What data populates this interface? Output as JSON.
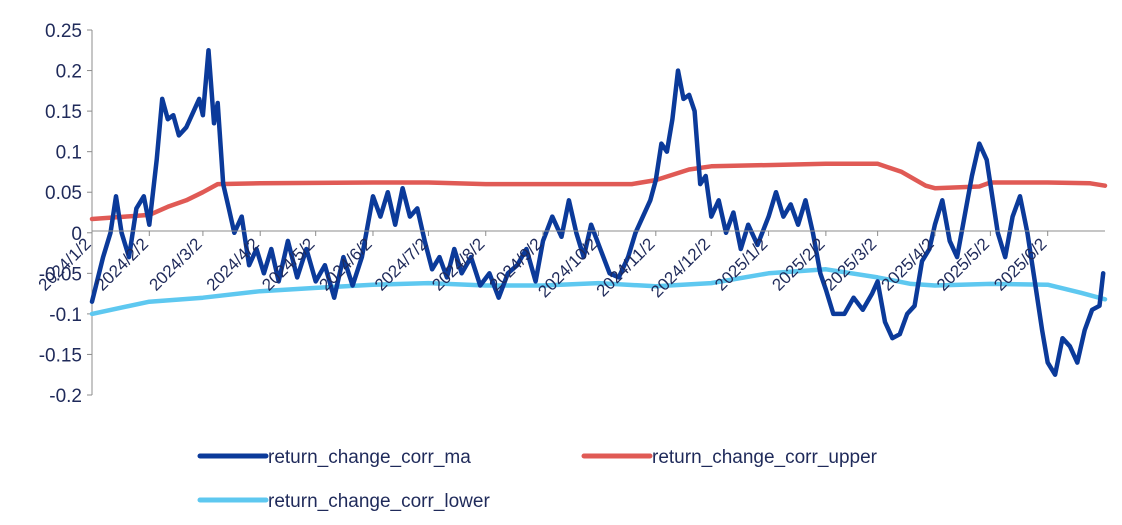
{
  "chart_data": {
    "type": "line",
    "title": "",
    "xlabel": "",
    "ylabel": "",
    "ylim": [
      -0.2,
      0.25
    ],
    "yticks": [
      0.25,
      0.2,
      0.15,
      0.1,
      0.05,
      0,
      -0.05,
      -0.1,
      -0.15,
      -0.2
    ],
    "ytick_labels": [
      "0.25",
      "0.2",
      "0.15",
      "0.1",
      "0.05",
      "0",
      "-0.05",
      "-0.1",
      "-0.15",
      "-0.2"
    ],
    "xtick_labels": [
      "2024/1/2",
      "2024/2/2",
      "2024/3/2",
      "2024/4/2",
      "2024/5/2",
      "2024/6/2",
      "2024/7/2",
      "2024/8/2",
      "2024/9/2",
      "2024/10/2",
      "2024/11/2",
      "2024/12/2",
      "2025/1/2",
      "2025/2/2",
      "2025/3/2",
      "2025/4/2",
      "2025/5/2",
      "2025/6/2"
    ],
    "x_range": [
      "2024/1/2",
      "2025/7/3"
    ],
    "grid": false,
    "legend_position": "bottom",
    "series": [
      {
        "name": "return_change_corr_ma",
        "color": "#0b3a9a",
        "points": [
          [
            "2024/1/2",
            -0.085
          ],
          [
            "2024/1/8",
            -0.03
          ],
          [
            "2024/1/12",
            0.0
          ],
          [
            "2024/1/15",
            0.045
          ],
          [
            "2024/1/18",
            0.0
          ],
          [
            "2024/1/22",
            -0.03
          ],
          [
            "2024/1/26",
            0.03
          ],
          [
            "2024/1/30",
            0.045
          ],
          [
            "2024/2/2",
            0.01
          ],
          [
            "2024/2/6",
            0.09
          ],
          [
            "2024/2/9",
            0.165
          ],
          [
            "2024/2/12",
            0.14
          ],
          [
            "2024/2/15",
            0.145
          ],
          [
            "2024/2/18",
            0.12
          ],
          [
            "2024/2/22",
            0.13
          ],
          [
            "2024/2/26",
            0.15
          ],
          [
            "2024/2/29",
            0.165
          ],
          [
            "2024/3/2",
            0.145
          ],
          [
            "2024/3/5",
            0.225
          ],
          [
            "2024/3/8",
            0.135
          ],
          [
            "2024/3/10",
            0.16
          ],
          [
            "2024/3/13",
            0.06
          ],
          [
            "2024/3/16",
            0.03
          ],
          [
            "2024/3/19",
            0.0
          ],
          [
            "2024/3/23",
            0.02
          ],
          [
            "2024/3/27",
            -0.04
          ],
          [
            "2024/3/31",
            -0.02
          ],
          [
            "2024/4/4",
            -0.05
          ],
          [
            "2024/4/8",
            -0.02
          ],
          [
            "2024/4/12",
            -0.06
          ],
          [
            "2024/4/17",
            -0.01
          ],
          [
            "2024/4/22",
            -0.055
          ],
          [
            "2024/4/27",
            -0.02
          ],
          [
            "2024/5/2",
            -0.06
          ],
          [
            "2024/5/7",
            -0.04
          ],
          [
            "2024/5/12",
            -0.08
          ],
          [
            "2024/5/17",
            -0.03
          ],
          [
            "2024/5/22",
            -0.065
          ],
          [
            "2024/5/27",
            -0.03
          ],
          [
            "2024/6/2",
            0.045
          ],
          [
            "2024/6/6",
            0.02
          ],
          [
            "2024/6/10",
            0.05
          ],
          [
            "2024/6/14",
            0.01
          ],
          [
            "2024/6/18",
            0.055
          ],
          [
            "2024/6/22",
            0.02
          ],
          [
            "2024/6/26",
            0.03
          ],
          [
            "2024/6/30",
            -0.01
          ],
          [
            "2024/7/4",
            -0.045
          ],
          [
            "2024/7/8",
            -0.03
          ],
          [
            "2024/7/12",
            -0.055
          ],
          [
            "2024/7/16",
            -0.02
          ],
          [
            "2024/7/20",
            -0.05
          ],
          [
            "2024/7/25",
            -0.03
          ],
          [
            "2024/7/30",
            -0.065
          ],
          [
            "2024/8/4",
            -0.05
          ],
          [
            "2024/8/9",
            -0.08
          ],
          [
            "2024/8/14",
            -0.05
          ],
          [
            "2024/8/19",
            -0.04
          ],
          [
            "2024/8/24",
            -0.02
          ],
          [
            "2024/8/29",
            -0.06
          ],
          [
            "2024/9/2",
            -0.01
          ],
          [
            "2024/9/7",
            0.02
          ],
          [
            "2024/9/12",
            -0.005
          ],
          [
            "2024/9/16",
            0.04
          ],
          [
            "2024/9/20",
            0.0
          ],
          [
            "2024/9/24",
            -0.03
          ],
          [
            "2024/9/28",
            0.01
          ],
          [
            "2024/10/3",
            -0.02
          ],
          [
            "2024/10/8",
            -0.05
          ],
          [
            "2024/10/13",
            -0.055
          ],
          [
            "2024/10/18",
            -0.03
          ],
          [
            "2024/10/22",
            0.0
          ],
          [
            "2024/10/26",
            0.02
          ],
          [
            "2024/10/30",
            0.04
          ],
          [
            "2024/11/2",
            0.065
          ],
          [
            "2024/11/5",
            0.11
          ],
          [
            "2024/11/8",
            0.1
          ],
          [
            "2024/11/11",
            0.14
          ],
          [
            "2024/11/14",
            0.2
          ],
          [
            "2024/11/17",
            0.165
          ],
          [
            "2024/11/20",
            0.17
          ],
          [
            "2024/11/23",
            0.15
          ],
          [
            "2024/11/26",
            0.06
          ],
          [
            "2024/11/29",
            0.07
          ],
          [
            "2024/12/2",
            0.02
          ],
          [
            "2024/12/6",
            0.04
          ],
          [
            "2024/12/10",
            0.0
          ],
          [
            "2024/12/14",
            0.025
          ],
          [
            "2024/12/18",
            -0.02
          ],
          [
            "2024/12/22",
            0.01
          ],
          [
            "2024/12/27",
            -0.015
          ],
          [
            "2025/1/2",
            0.02
          ],
          [
            "2025/1/6",
            0.05
          ],
          [
            "2025/1/10",
            0.02
          ],
          [
            "2025/1/14",
            0.035
          ],
          [
            "2025/1/18",
            0.01
          ],
          [
            "2025/1/22",
            0.04
          ],
          [
            "2025/1/26",
            0.0
          ],
          [
            "2025/1/30",
            -0.05
          ],
          [
            "2025/2/2",
            -0.07
          ],
          [
            "2025/2/6",
            -0.1
          ],
          [
            "2025/2/12",
            -0.1
          ],
          [
            "2025/2/17",
            -0.08
          ],
          [
            "2025/2/22",
            -0.095
          ],
          [
            "2025/2/27",
            -0.075
          ],
          [
            "2025/3/2",
            -0.06
          ],
          [
            "2025/3/6",
            -0.11
          ],
          [
            "2025/3/10",
            -0.13
          ],
          [
            "2025/3/14",
            -0.125
          ],
          [
            "2025/3/18",
            -0.1
          ],
          [
            "2025/3/22",
            -0.09
          ],
          [
            "2025/3/26",
            -0.035
          ],
          [
            "2025/3/30",
            -0.02
          ],
          [
            "2025/4/2",
            0.01
          ],
          [
            "2025/4/6",
            0.04
          ],
          [
            "2025/4/10",
            -0.01
          ],
          [
            "2025/4/14",
            -0.03
          ],
          [
            "2025/4/18",
            0.02
          ],
          [
            "2025/4/22",
            0.07
          ],
          [
            "2025/4/26",
            0.11
          ],
          [
            "2025/4/30",
            0.09
          ],
          [
            "2025/5/2",
            0.06
          ],
          [
            "2025/5/6",
            0.0
          ],
          [
            "2025/5/10",
            -0.03
          ],
          [
            "2025/5/14",
            0.02
          ],
          [
            "2025/5/18",
            0.045
          ],
          [
            "2025/5/22",
            0.0
          ],
          [
            "2025/5/26",
            -0.06
          ],
          [
            "2025/5/30",
            -0.12
          ],
          [
            "2025/6/2",
            -0.16
          ],
          [
            "2025/6/6",
            -0.175
          ],
          [
            "2025/6/10",
            -0.13
          ],
          [
            "2025/6/14",
            -0.14
          ],
          [
            "2025/6/18",
            -0.16
          ],
          [
            "2025/6/22",
            -0.12
          ],
          [
            "2025/6/26",
            -0.095
          ],
          [
            "2025/6/30",
            -0.09
          ],
          [
            "2025/7/2",
            -0.05
          ]
        ]
      },
      {
        "name": "return_change_corr_upper",
        "color": "#e05a55",
        "points": [
          [
            "2024/1/2",
            0.017
          ],
          [
            "2024/1/20",
            0.02
          ],
          [
            "2024/2/2",
            0.022
          ],
          [
            "2024/2/12",
            0.032
          ],
          [
            "2024/2/22",
            0.04
          ],
          [
            "2024/3/2",
            0.05
          ],
          [
            "2024/3/10",
            0.06
          ],
          [
            "2024/4/2",
            0.061
          ],
          [
            "2024/6/2",
            0.062
          ],
          [
            "2024/7/2",
            0.062
          ],
          [
            "2024/8/2",
            0.06
          ],
          [
            "2024/10/20",
            0.06
          ],
          [
            "2024/11/2",
            0.065
          ],
          [
            "2024/11/20",
            0.078
          ],
          [
            "2024/12/2",
            0.082
          ],
          [
            "2025/2/2",
            0.085
          ],
          [
            "2025/3/2",
            0.085
          ],
          [
            "2025/3/15",
            0.075
          ],
          [
            "2025/3/28",
            0.058
          ],
          [
            "2025/4/2",
            0.055
          ],
          [
            "2025/4/26",
            0.057
          ],
          [
            "2025/5/2",
            0.062
          ],
          [
            "2025/6/2",
            0.062
          ],
          [
            "2025/6/25",
            0.061
          ],
          [
            "2025/7/3",
            0.058
          ]
        ]
      },
      {
        "name": "return_change_corr_lower",
        "color": "#5ec8f0",
        "points": [
          [
            "2024/1/2",
            -0.1
          ],
          [
            "2024/2/2",
            -0.085
          ],
          [
            "2024/3/2",
            -0.08
          ],
          [
            "2024/4/2",
            -0.072
          ],
          [
            "2024/5/2",
            -0.068
          ],
          [
            "2024/6/2",
            -0.064
          ],
          [
            "2024/7/2",
            -0.062
          ],
          [
            "2024/8/2",
            -0.065
          ],
          [
            "2024/9/2",
            -0.065
          ],
          [
            "2024/10/2",
            -0.062
          ],
          [
            "2024/11/2",
            -0.066
          ],
          [
            "2024/12/2",
            -0.062
          ],
          [
            "2025/1/2",
            -0.05
          ],
          [
            "2025/2/2",
            -0.045
          ],
          [
            "2025/3/2",
            -0.055
          ],
          [
            "2025/3/20",
            -0.063
          ],
          [
            "2025/4/2",
            -0.065
          ],
          [
            "2025/5/2",
            -0.063
          ],
          [
            "2025/6/2",
            -0.064
          ],
          [
            "2025/6/20",
            -0.074
          ],
          [
            "2025/7/3",
            -0.082
          ]
        ]
      }
    ]
  }
}
